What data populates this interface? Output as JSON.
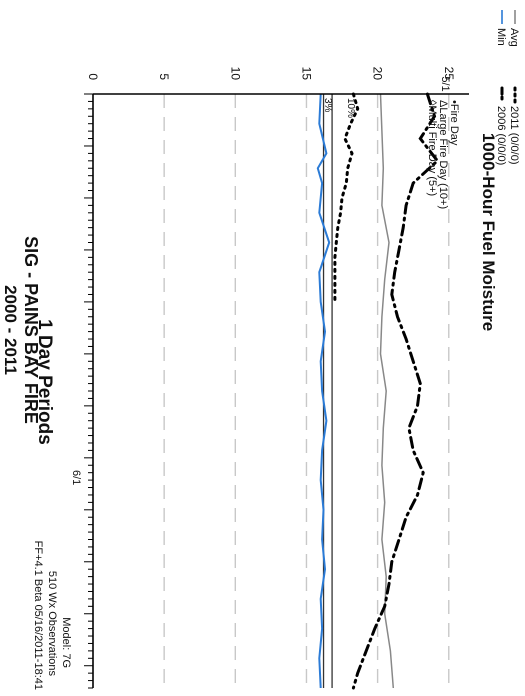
{
  "chart_data": {
    "type": "line",
    "orientation": "rotated-90-clockwise",
    "title": "1000-Hour Fuel Moisture",
    "subtitle": "SIG - PAINS BAY FIRE",
    "year_range": "2000 - 2011",
    "period_label": "1 Day Periods",
    "x_start_label": "5/1",
    "x_mid_label": "6/1",
    "x_domain_days": [
      0,
      80
    ],
    "y_domain": [
      0,
      26
    ],
    "y_ticks": [
      0,
      5,
      10,
      15,
      20,
      25
    ],
    "grid": true,
    "legend": {
      "placement": "top-left",
      "entries": [
        {
          "label": "Avg",
          "color": "#888888",
          "style": "solid"
        },
        {
          "label": "Min",
          "color": "#2b7bd6",
          "style": "solid"
        },
        {
          "label": "2011 (0/0/0)",
          "color": "#000000",
          "style": "dotted"
        },
        {
          "label": "2006 (0/0/0)",
          "color": "#000000",
          "style": "dashdot"
        }
      ]
    },
    "fire_legend": [
      "Fire Day",
      "Large Fire Day (10+)",
      "Multi Fire Day (5+)"
    ],
    "percentile_labels": [
      {
        "label": "10%",
        "value": 18.2
      },
      {
        "label": "3%",
        "value": 16.6
      }
    ],
    "threshold_lines": [
      16.2,
      16.8
    ],
    "model_note": "Model: 7G",
    "obs_note": "510 Wx Observations",
    "footer_note": "FF+4.1 Beta 05/16/2011-18:41",
    "series": [
      {
        "name": "Avg",
        "color": "#888888",
        "x": [
          0,
          5,
          10,
          15,
          20,
          25,
          30,
          35,
          40,
          45,
          50,
          55,
          60,
          65,
          70,
          75,
          80
        ],
        "values": [
          20.2,
          20.3,
          20.4,
          20.3,
          20.8,
          20.5,
          20.3,
          20.2,
          20.6,
          20.4,
          20.3,
          20.5,
          20.3,
          20.6,
          20.5,
          20.9,
          21.1
        ]
      },
      {
        "name": "Min",
        "color": "#2b7bd6",
        "x": [
          0,
          4,
          8,
          10,
          12,
          16,
          20,
          24,
          28,
          32,
          36,
          40,
          44,
          48,
          52,
          56,
          60,
          64,
          68,
          72,
          76,
          80
        ],
        "values": [
          16.0,
          15.9,
          16.4,
          15.8,
          16.1,
          15.9,
          16.6,
          15.9,
          16.0,
          16.3,
          16.0,
          16.1,
          16.4,
          16.1,
          16.0,
          16.2,
          16.1,
          16.3,
          16.0,
          16.1,
          15.9,
          16.0
        ]
      },
      {
        "name": "2011 (0/0/0)",
        "color": "#000000",
        "x": [
          0,
          2,
          4,
          6,
          8,
          10,
          12,
          14,
          16,
          18,
          20,
          22,
          24,
          26,
          28
        ],
        "values": [
          18.3,
          18.6,
          18.1,
          17.7,
          18.2,
          17.9,
          17.8,
          17.5,
          17.4,
          17.2,
          17.1,
          17.0,
          17.0,
          17.0,
          17.0
        ]
      },
      {
        "name": "2006 (0/0/0)",
        "color": "#000000",
        "x": [
          0,
          3,
          6,
          9,
          12,
          15,
          18,
          21,
          24,
          27,
          30,
          33,
          36,
          39,
          42,
          45,
          48,
          51,
          54,
          57,
          60,
          63,
          66,
          69,
          72,
          75,
          78,
          80
        ],
        "values": [
          23.5,
          24.0,
          23.0,
          24.2,
          22.5,
          22.0,
          21.8,
          21.5,
          21.2,
          21.0,
          21.4,
          22.0,
          22.5,
          23.0,
          22.8,
          22.2,
          22.5,
          23.2,
          22.8,
          22.0,
          21.5,
          21.0,
          20.8,
          20.5,
          19.8,
          19.2,
          18.6,
          18.3
        ]
      }
    ]
  }
}
